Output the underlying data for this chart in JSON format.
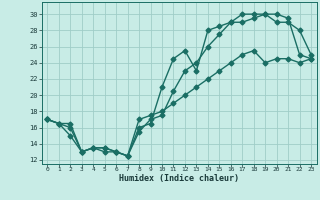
{
  "xlabel": "Humidex (Indice chaleur)",
  "xlim": [
    -0.5,
    23.5
  ],
  "ylim": [
    11.5,
    31.5
  ],
  "xticks": [
    0,
    1,
    2,
    3,
    4,
    5,
    6,
    7,
    8,
    9,
    10,
    11,
    12,
    13,
    14,
    15,
    16,
    17,
    18,
    19,
    20,
    21,
    22,
    23
  ],
  "yticks": [
    12,
    14,
    16,
    18,
    20,
    22,
    24,
    26,
    28,
    30
  ],
  "bg_color": "#c8ece6",
  "grid_color": "#a0cdc8",
  "line_color": "#1a6e64",
  "line1_x": [
    0,
    1,
    2,
    3,
    4,
    5,
    6,
    7,
    8,
    9,
    10,
    11,
    12,
    13,
    14,
    15,
    16,
    17,
    18,
    19,
    20,
    21,
    22,
    23
  ],
  "line1_y": [
    17,
    16.5,
    16,
    13,
    13.5,
    13.5,
    13,
    12.5,
    16,
    16.5,
    21,
    24.5,
    25.5,
    23,
    28,
    28.5,
    29,
    30,
    30,
    30,
    29,
    29,
    28,
    25
  ],
  "line2_x": [
    0,
    1,
    2,
    3,
    4,
    5,
    6,
    7,
    8,
    9,
    10,
    11,
    12,
    13,
    14,
    15,
    16,
    17,
    18,
    19,
    20,
    21,
    22,
    23
  ],
  "line2_y": [
    17,
    16.5,
    16.5,
    13,
    13.5,
    13.5,
    13,
    12.5,
    15.5,
    17,
    17.5,
    20.5,
    23,
    24,
    26,
    27.5,
    29,
    29,
    29.5,
    30,
    30,
    29.5,
    25,
    24.5
  ],
  "line3_x": [
    0,
    1,
    2,
    3,
    4,
    5,
    6,
    7,
    8,
    9,
    10,
    11,
    12,
    13,
    14,
    15,
    16,
    17,
    18,
    19,
    20,
    21,
    22,
    23
  ],
  "line3_y": [
    17,
    16.5,
    15,
    13,
    13.5,
    13,
    13,
    12.5,
    17,
    17.5,
    18,
    19,
    20,
    21,
    22,
    23,
    24,
    25,
    25.5,
    24,
    24.5,
    24.5,
    24,
    24.5
  ]
}
